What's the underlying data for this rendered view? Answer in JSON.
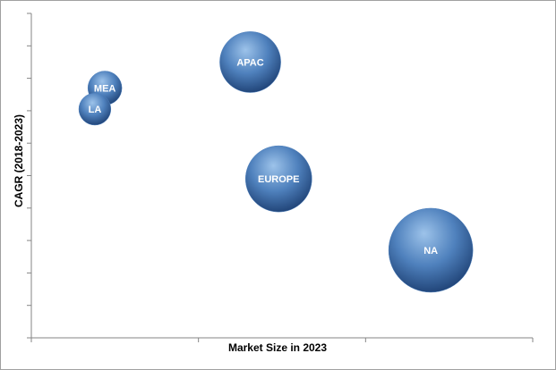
{
  "chart_data": {
    "type": "bubble",
    "x_label": "Market Size in 2023",
    "y_label": "CAGR (2018-2023)",
    "categories": [
      "MEA",
      "LA",
      "APAC",
      "EUROPE",
      "NA"
    ],
    "x": [
      0.44,
      0.38,
      1.31,
      1.48,
      2.39
    ],
    "values": [
      7.7,
      7.05,
      8.5,
      4.9,
      2.7
    ],
    "sizes": [
      3.6,
      3.2,
      11.6,
      13.7,
      22.1
    ],
    "color": "#4f81bd",
    "xlim": [
      0,
      3
    ],
    "xticks": [
      0,
      1,
      2,
      3
    ],
    "ylim": [
      0,
      10
    ],
    "yticks": [
      0,
      1,
      2,
      3,
      4,
      5,
      6,
      7,
      8,
      9,
      10
    ]
  }
}
